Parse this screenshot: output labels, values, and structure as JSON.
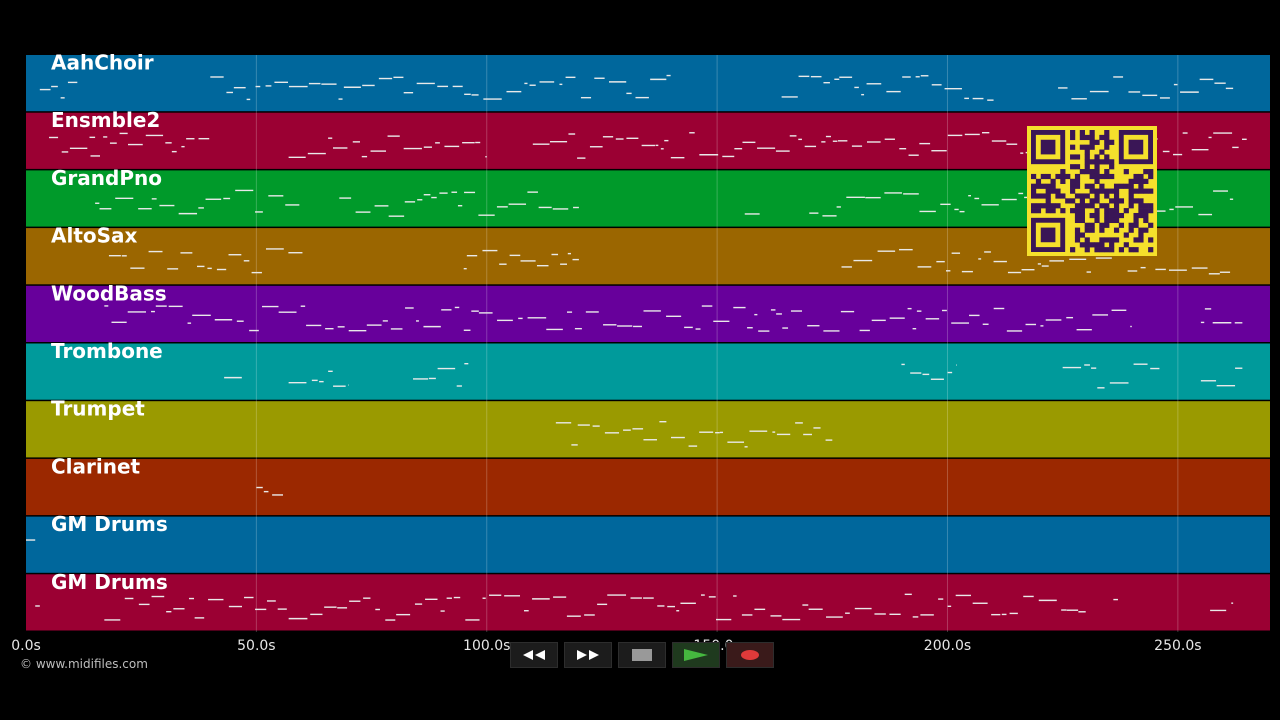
{
  "tracks": [
    {
      "name": "AahChoir",
      "color": "#00679c"
    },
    {
      "name": "Ensmble2",
      "color": "#9b0033"
    },
    {
      "name": "GrandPno",
      "color": "#009a2a"
    },
    {
      "name": "AltoSax",
      "color": "#9b6600"
    },
    {
      "name": "WoodBass",
      "color": "#67009b"
    },
    {
      "name": "Trombone",
      "color": "#009a9b"
    },
    {
      "name": "Trumpet",
      "color": "#9a9a00"
    },
    {
      "name": "Clarinet",
      "color": "#9b2800"
    },
    {
      "name": "GM Drums",
      "color": "#00679c"
    },
    {
      "name": "GM Drums",
      "color": "#9b0033"
    }
  ],
  "time_axis": {
    "max_seconds": 270,
    "ticks": [
      {
        "value": 0,
        "label": "0.0s"
      },
      {
        "value": 50,
        "label": "50.0s"
      },
      {
        "value": 100,
        "label": "100.0s"
      },
      {
        "value": 150,
        "label": "150.0s"
      },
      {
        "value": 200,
        "label": "200.0s"
      },
      {
        "value": 250,
        "label": "250.0s"
      }
    ]
  },
  "copyright": "© www.midifiles.com",
  "transport": {
    "rewind_icon": "rewind-icon",
    "fast_forward_icon": "fast-forward-icon",
    "stop_icon": "stop-icon",
    "play_icon": "play-icon",
    "record_icon": "record-icon",
    "play_color": "#45b83f",
    "record_color": "#e03a3a"
  },
  "qr_color": "#f5e02c"
}
